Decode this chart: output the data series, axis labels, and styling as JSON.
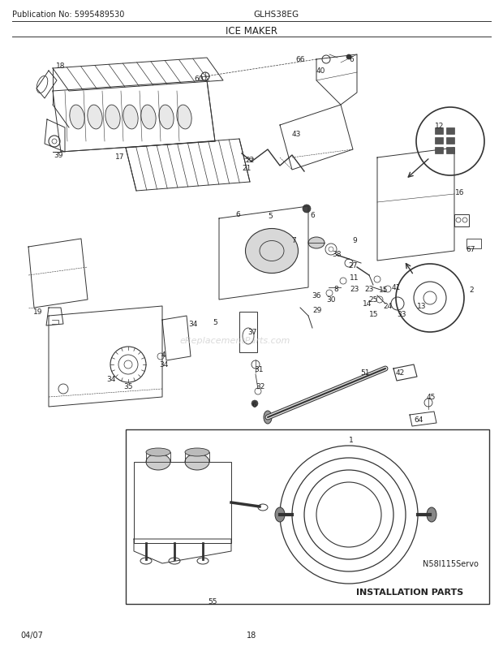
{
  "pub_no": "Publication No: 5995489530",
  "model": "GLHS38EG",
  "title": "ICE MAKER",
  "date": "04/07",
  "page": "18",
  "n58_label": "N58I115Servo",
  "install_label": "INSTALLATION PARTS",
  "bg_color": "#ffffff",
  "text_color": "#222222",
  "line_color": "#333333",
  "watermark": "eReplacementParts.com",
  "fig_w": 6.2,
  "fig_h": 8.03
}
